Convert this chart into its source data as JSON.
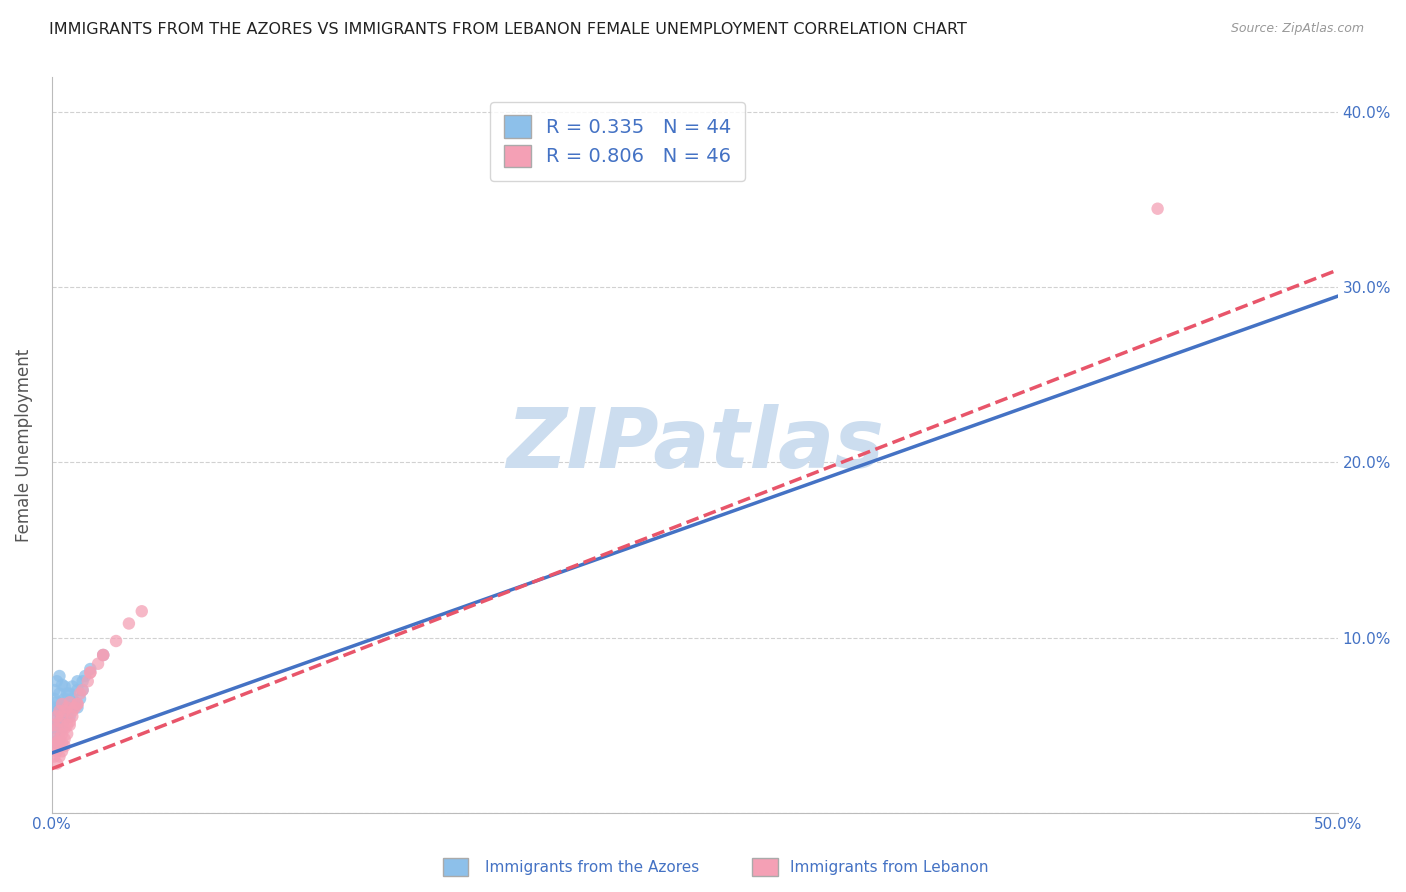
{
  "title": "IMMIGRANTS FROM THE AZORES VS IMMIGRANTS FROM LEBANON FEMALE UNEMPLOYMENT CORRELATION CHART",
  "source": "Source: ZipAtlas.com",
  "ylabel": "Female Unemployment",
  "xlim": [
    0,
    0.5
  ],
  "ylim": [
    0,
    0.42
  ],
  "x_ticks": [
    0.0,
    0.1,
    0.2,
    0.3,
    0.4,
    0.5
  ],
  "x_tick_labels": [
    "0.0%",
    "",
    "",
    "",
    "",
    "50.0%"
  ],
  "y_ticks": [
    0.0,
    0.1,
    0.2,
    0.3,
    0.4
  ],
  "y_tick_labels_right": [
    "",
    "10.0%",
    "20.0%",
    "30.0%",
    "40.0%"
  ],
  "series1_label": "Immigrants from the Azores",
  "series2_label": "Immigrants from Lebanon",
  "series1_R": "0.335",
  "series1_N": "44",
  "series2_R": "0.806",
  "series2_N": "46",
  "series1_color": "#8DC0EA",
  "series2_color": "#F4A0B5",
  "trend1_color": "#4472C4",
  "trend2_color": "#E8556A",
  "watermark": "ZIPatlas",
  "watermark_color": "#CCDDEF",
  "background_color": "#FFFFFF",
  "grid_color": "#CCCCCC",
  "title_color": "#222222",
  "axis_label_color": "#555555",
  "tick_color": "#4472C4",
  "legend_text_color": "#4472C4",
  "azores_x": [
    0.001,
    0.001,
    0.001,
    0.001,
    0.002,
    0.002,
    0.002,
    0.002,
    0.003,
    0.003,
    0.003,
    0.003,
    0.004,
    0.004,
    0.004,
    0.005,
    0.005,
    0.005,
    0.006,
    0.006,
    0.007,
    0.007,
    0.008,
    0.008,
    0.009,
    0.01,
    0.01,
    0.011,
    0.012,
    0.013,
    0.001,
    0.001,
    0.002,
    0.002,
    0.003,
    0.003,
    0.004,
    0.005,
    0.007,
    0.008,
    0.01,
    0.012,
    0.015,
    0.02
  ],
  "azores_y": [
    0.055,
    0.06,
    0.065,
    0.07,
    0.05,
    0.058,
    0.063,
    0.075,
    0.052,
    0.06,
    0.068,
    0.078,
    0.055,
    0.062,
    0.073,
    0.053,
    0.065,
    0.072,
    0.055,
    0.068,
    0.055,
    0.068,
    0.06,
    0.072,
    0.063,
    0.06,
    0.075,
    0.065,
    0.07,
    0.078,
    0.04,
    0.045,
    0.04,
    0.048,
    0.042,
    0.052,
    0.048,
    0.055,
    0.06,
    0.065,
    0.07,
    0.075,
    0.082,
    0.09
  ],
  "lebanon_x": [
    0.001,
    0.001,
    0.001,
    0.002,
    0.002,
    0.002,
    0.003,
    0.003,
    0.003,
    0.004,
    0.004,
    0.004,
    0.005,
    0.005,
    0.006,
    0.006,
    0.007,
    0.007,
    0.008,
    0.009,
    0.01,
    0.011,
    0.012,
    0.014,
    0.015,
    0.018,
    0.02,
    0.025,
    0.03,
    0.035,
    0.001,
    0.002,
    0.003,
    0.004,
    0.005,
    0.006,
    0.002,
    0.003,
    0.004,
    0.005,
    0.007,
    0.01,
    0.015,
    0.02,
    0.008,
    0.43
  ],
  "lebanon_y": [
    0.038,
    0.042,
    0.05,
    0.04,
    0.048,
    0.055,
    0.042,
    0.052,
    0.058,
    0.045,
    0.055,
    0.062,
    0.048,
    0.058,
    0.05,
    0.06,
    0.052,
    0.063,
    0.058,
    0.06,
    0.062,
    0.068,
    0.07,
    0.075,
    0.08,
    0.085,
    0.09,
    0.098,
    0.108,
    0.115,
    0.032,
    0.035,
    0.038,
    0.04,
    0.042,
    0.045,
    0.028,
    0.032,
    0.035,
    0.038,
    0.05,
    0.062,
    0.08,
    0.09,
    0.055,
    0.345
  ],
  "trend1_x": [
    0.0,
    0.5
  ],
  "trend1_y": [
    0.034,
    0.295
  ],
  "trend2_x": [
    0.0,
    0.5
  ],
  "trend2_y": [
    0.025,
    0.31
  ]
}
